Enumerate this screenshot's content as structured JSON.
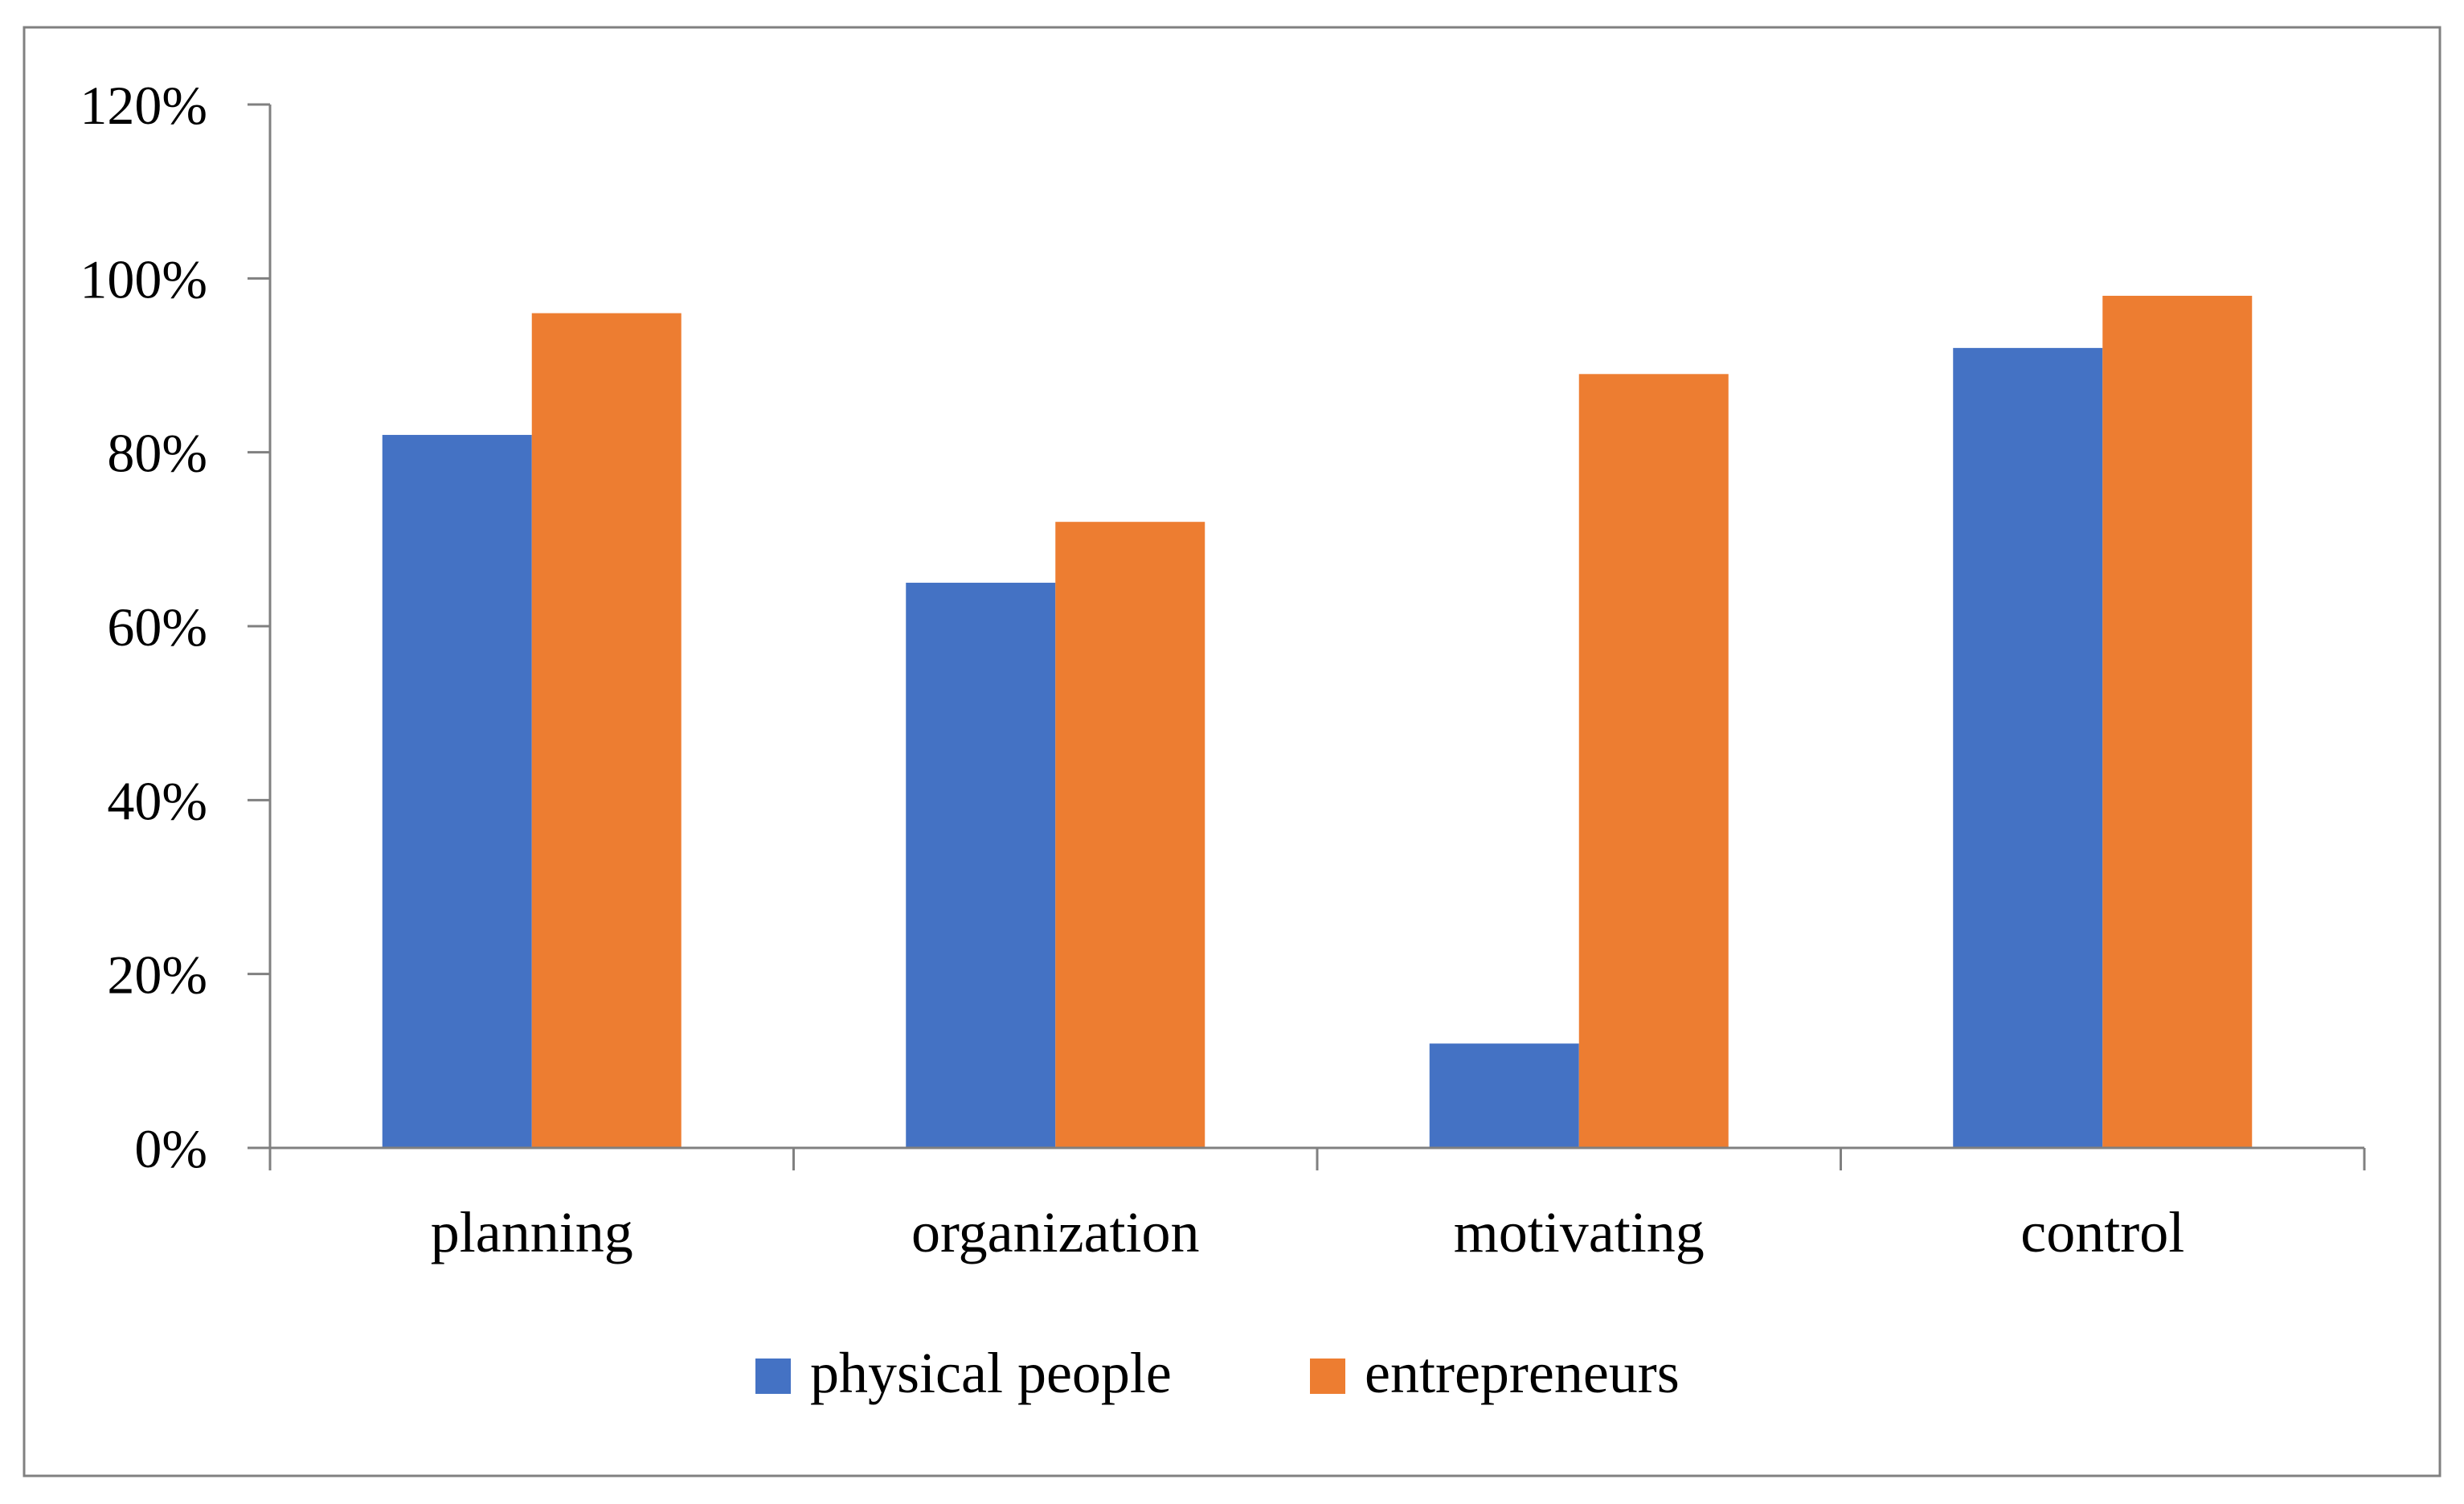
{
  "chart_data": {
    "type": "bar",
    "title": "",
    "xlabel": "",
    "ylabel": "",
    "categories": [
      "planning",
      "organization",
      "motivating",
      "control"
    ],
    "series": [
      {
        "name": "physical people",
        "color": "#4472C4",
        "values": [
          82,
          65,
          12,
          92
        ]
      },
      {
        "name": "entrepreneurs",
        "color": "#ED7D31",
        "values": [
          96,
          72,
          89,
          98
        ]
      }
    ],
    "ylim": [
      0,
      120
    ],
    "yticks": [
      0,
      20,
      40,
      60,
      80,
      100,
      120
    ],
    "ytick_labels": [
      "0%",
      "20%",
      "40%",
      "60%",
      "80%",
      "100%",
      "120%"
    ],
    "grid": false,
    "legend_position": "bottom"
  },
  "colors": {
    "axis": "#808080",
    "frame": "#808080"
  }
}
